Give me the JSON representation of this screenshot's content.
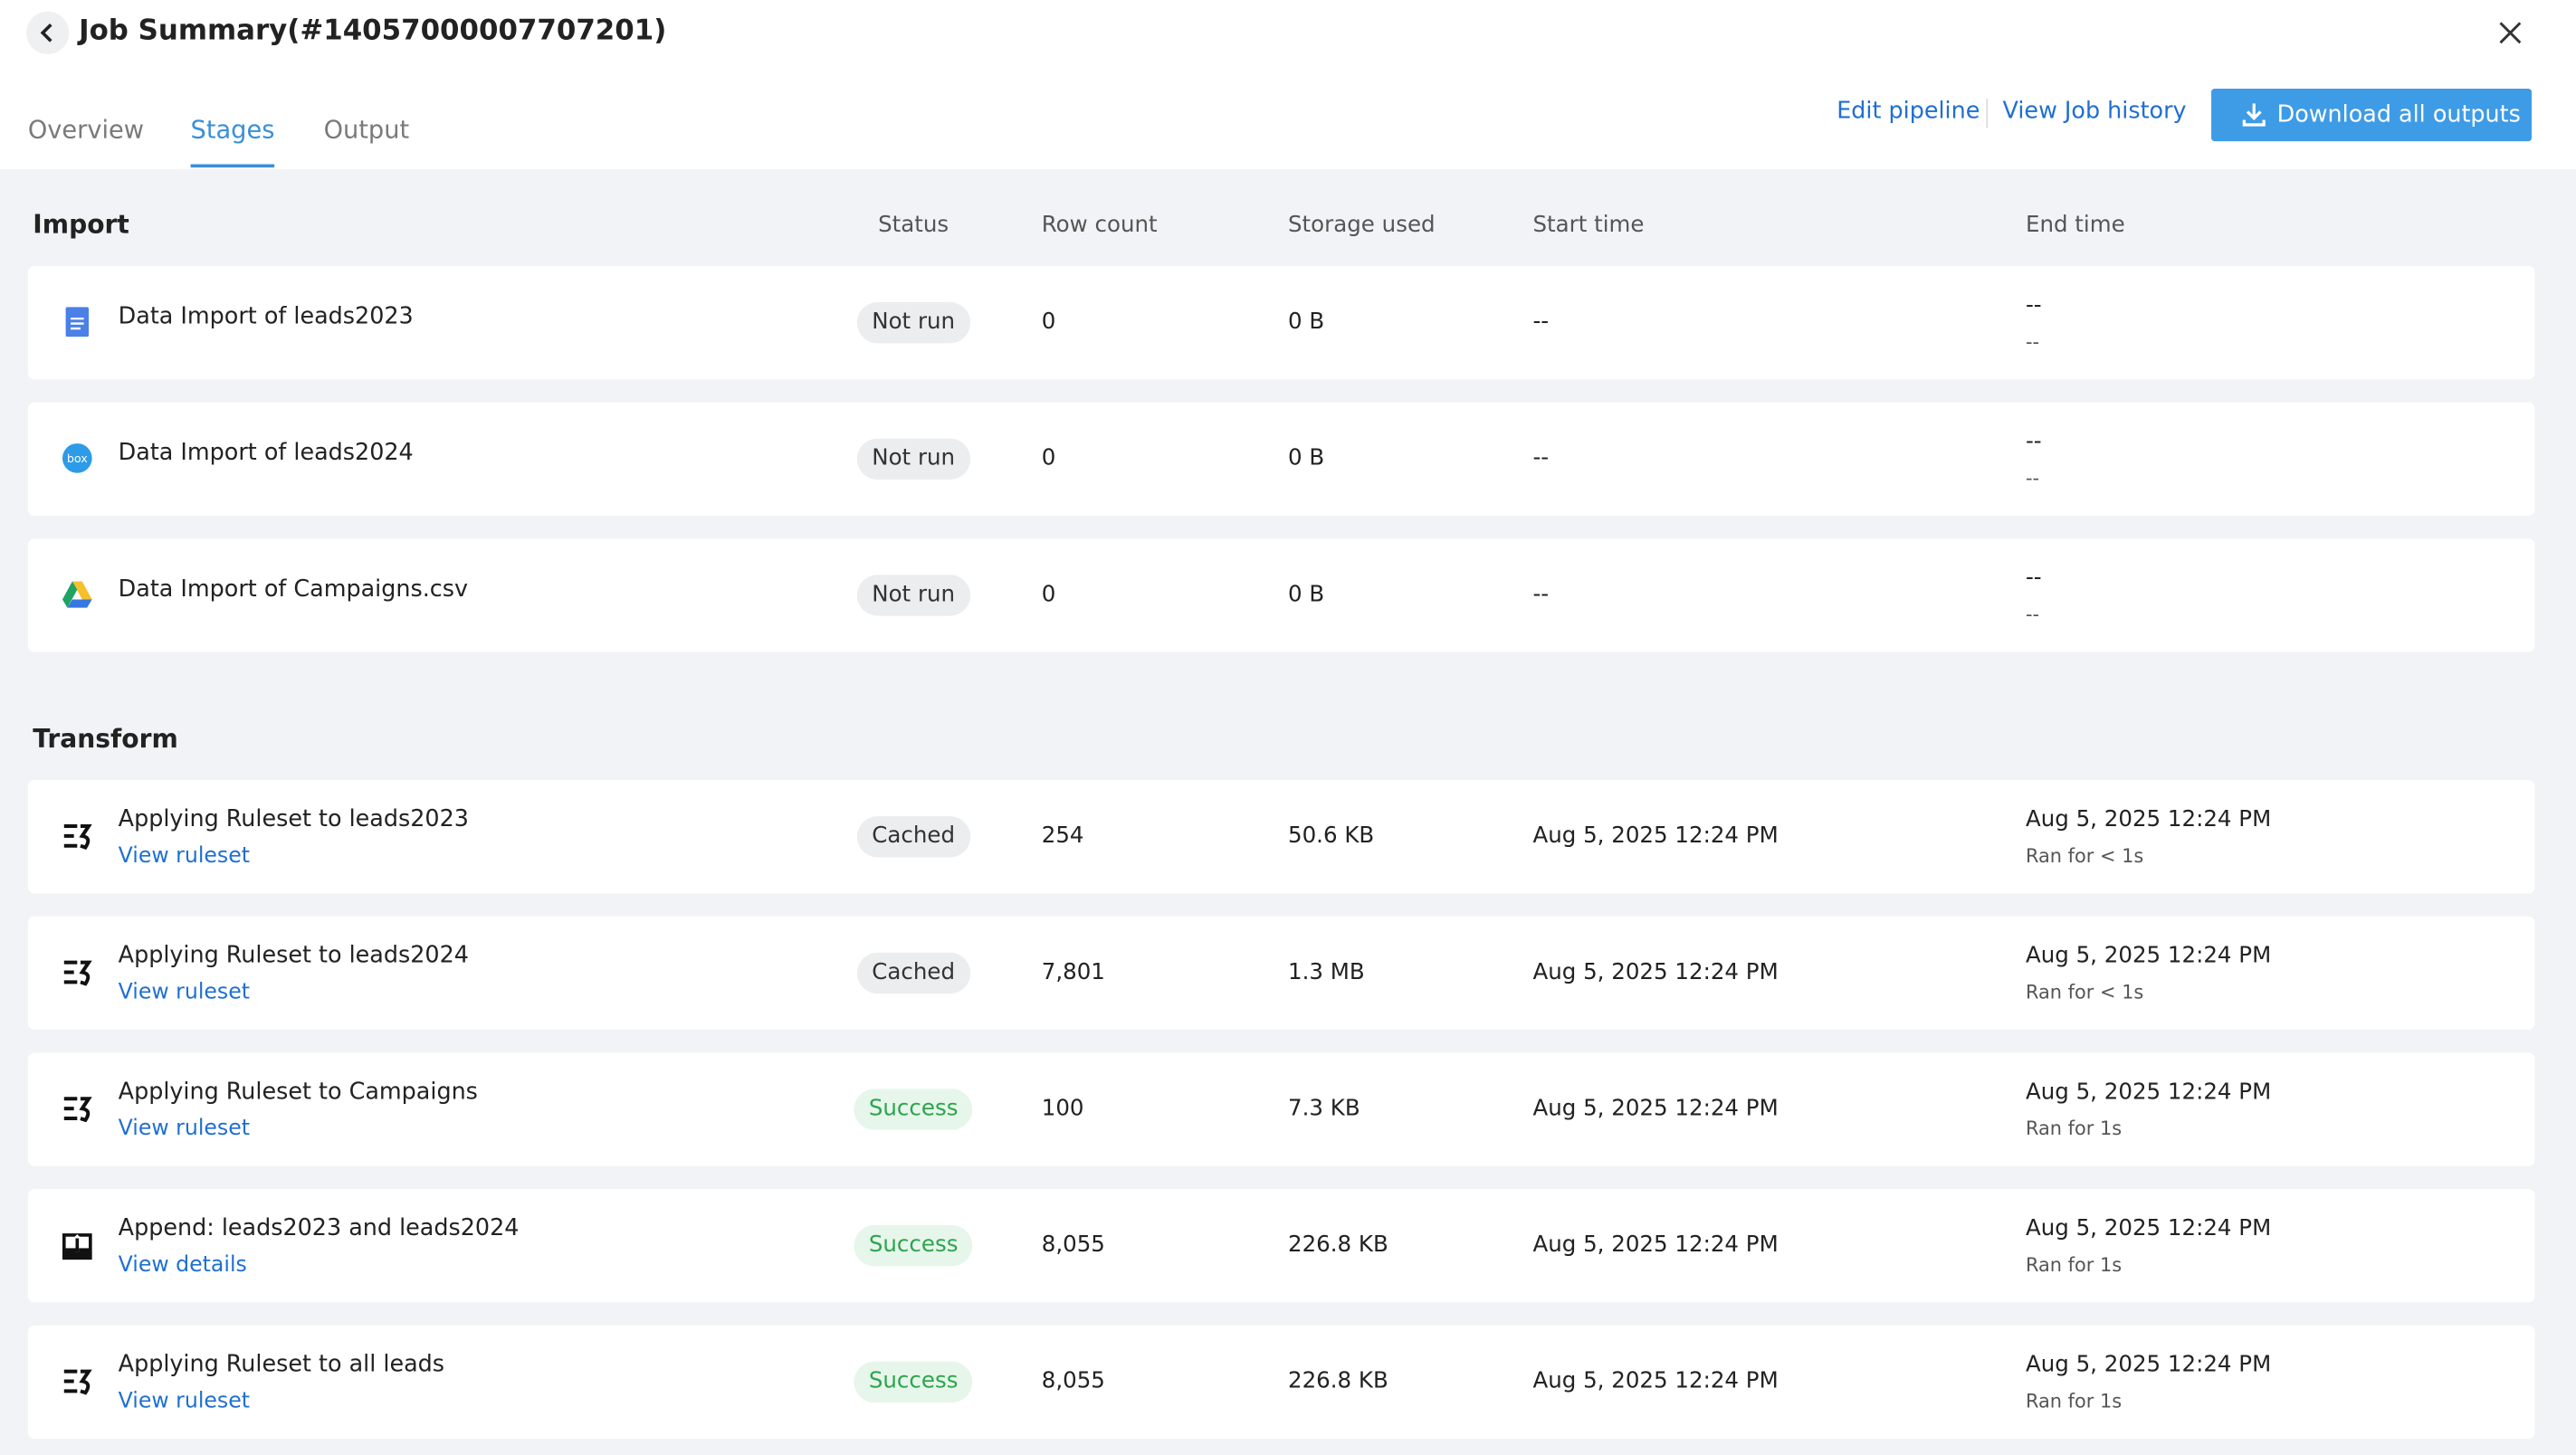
{
  "header": {
    "title": "Job Summary(#14057000007707201)"
  },
  "tabs": [
    "Overview",
    "Stages",
    "Output"
  ],
  "actions": [
    "Edit pipeline",
    "View Job history",
    "Download all outputs"
  ],
  "sections": [
    {
      "title": "Import",
      "columns": [
        "Status",
        "Row count",
        "Storage used",
        "Start time",
        "End time"
      ],
      "rows": [
        {
          "name": "Data Import of leads2023",
          "status": "Not run",
          "status_style": "neutral",
          "row_count": "0",
          "storage": "0 B",
          "start": "--",
          "end": "--",
          "end_note": "--"
        },
        {
          "name": "Data Import of leads2024",
          "status": "Not run",
          "status_style": "neutral",
          "row_count": "0",
          "storage": "0 B",
          "start": "--",
          "end": "--",
          "end_note": "--"
        },
        {
          "name": "Data Import of Campaigns.csv",
          "status": "Not run",
          "status_style": "neutral",
          "row_count": "0",
          "storage": "0 B",
          "start": "--",
          "end": "--",
          "end_note": "--"
        }
      ]
    },
    {
      "title": "Transform",
      "rows": [
        {
          "name": "Applying Ruleset to leads2023",
          "link": "View ruleset",
          "status": "Cached",
          "status_style": "neutral",
          "row_count": "254",
          "storage": "50.6 KB",
          "start": "Aug 5, 2025 12:24 PM",
          "end": "Aug 5, 2025 12:24 PM",
          "end_note": "Ran for < 1s"
        },
        {
          "name": "Applying Ruleset to leads2024",
          "link": "View ruleset",
          "status": "Cached",
          "status_style": "neutral",
          "row_count": "7,801",
          "storage": "1.3 MB",
          "start": "Aug 5, 2025 12:24 PM",
          "end": "Aug 5, 2025 12:24 PM",
          "end_note": "Ran for < 1s"
        },
        {
          "name": "Applying Ruleset to Campaigns",
          "link": "View ruleset",
          "status": "Success",
          "status_style": "success",
          "row_count": "100",
          "storage": "7.3 KB",
          "start": "Aug 5, 2025 12:24 PM",
          "end": "Aug 5, 2025 12:24 PM",
          "end_note": "Ran for 1s"
        },
        {
          "name": "Append: leads2023 and leads2024",
          "link": "View details",
          "status": "Success",
          "status_style": "success",
          "row_count": "8,055",
          "storage": "226.8 KB",
          "start": "Aug 5, 2025 12:24 PM",
          "end": "Aug 5, 2025 12:24 PM",
          "end_note": "Ran for 1s"
        },
        {
          "name": "Applying Ruleset to all leads",
          "link": "View ruleset",
          "status": "Success",
          "status_style": "success",
          "row_count": "8,055",
          "storage": "226.8 KB",
          "start": "Aug 5, 2025 12:24 PM",
          "end": "Aug 5, 2025 12:24 PM",
          "end_note": "Ran for 1s"
        }
      ]
    }
  ]
}
